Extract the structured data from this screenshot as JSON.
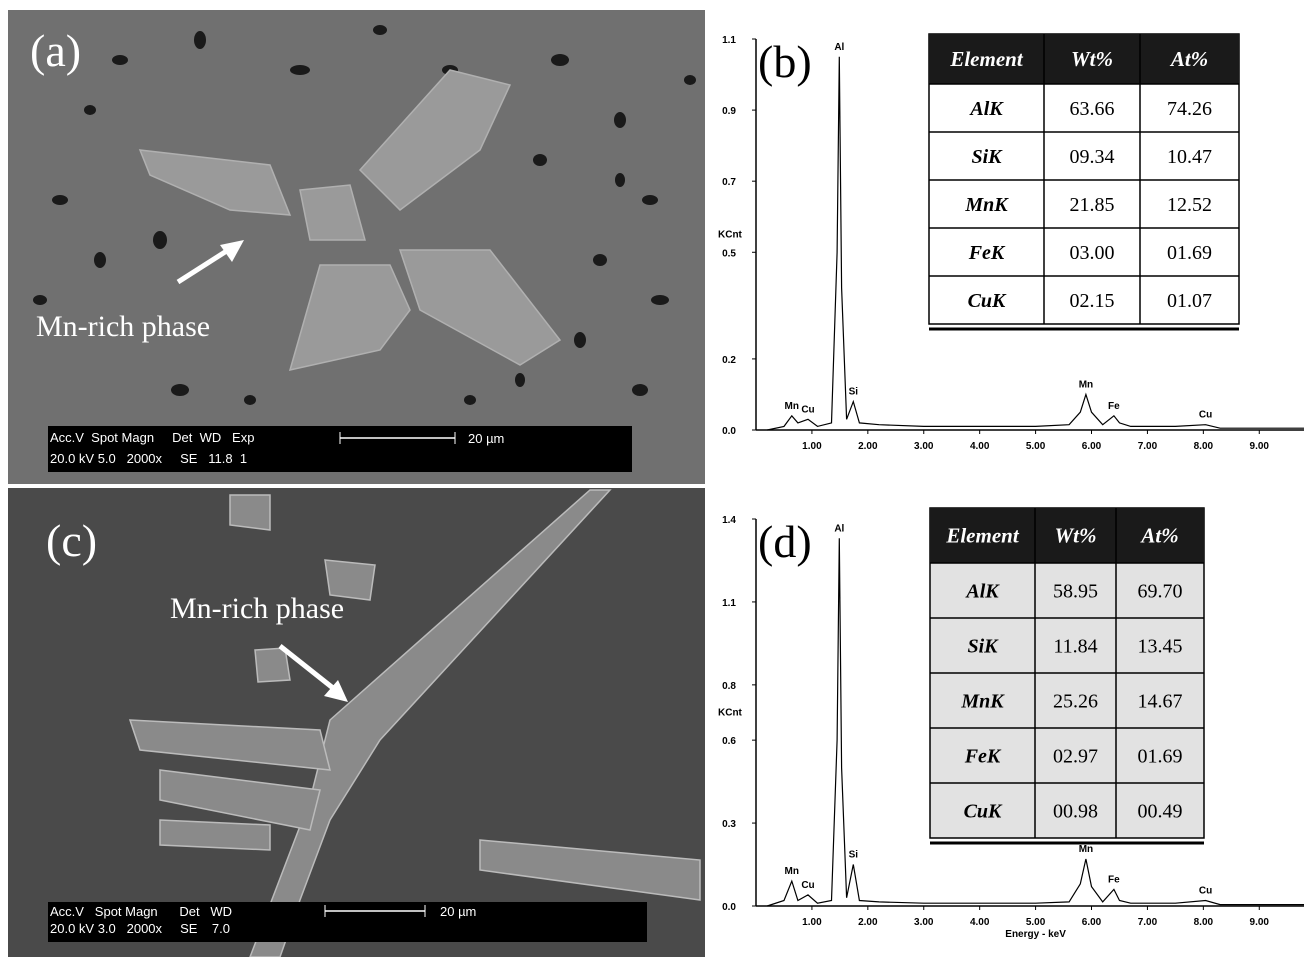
{
  "sem_images": [
    {
      "label": "(a)",
      "annotation": "Mn-rich phase",
      "info_bar": {
        "line1": "Acc.V  Spot Magn     Det  WD   Exp",
        "line2": "20.0 kV 5.0   2000x     SE   11.8  1",
        "scale": "20 µm"
      }
    },
    {
      "label": "(c)",
      "annotation": "Mn-rich phase",
      "info_bar": {
        "line1": "Acc.V   Spot Magn      Det   WD",
        "line2": "20.0 kV 3.0   2000x     SE    7.0",
        "scale": "20 µm"
      }
    }
  ],
  "chart_data": [
    {
      "type": "line",
      "label": "(b)",
      "y_label": "KCnt",
      "color": "#000000",
      "x": [
        0.2,
        0.5,
        0.64,
        0.75,
        0.93,
        1.1,
        1.35,
        1.45,
        1.49,
        1.53,
        1.62,
        1.74,
        1.85,
        2.2,
        3,
        4,
        5,
        5.6,
        5.8,
        5.9,
        6.0,
        6.2,
        6.4,
        6.5,
        6.7,
        7.5,
        8.04,
        8.3,
        9,
        9.8
      ],
      "values": [
        0.0,
        0.01,
        0.04,
        0.02,
        0.03,
        0.01,
        0.02,
        0.5,
        1.05,
        0.4,
        0.03,
        0.08,
        0.02,
        0.015,
        0.01,
        0.01,
        0.01,
        0.015,
        0.05,
        0.1,
        0.05,
        0.015,
        0.04,
        0.02,
        0.01,
        0.01,
        0.015,
        0.005,
        0.005,
        0.005
      ],
      "peaks": [
        {
          "text": "Mn",
          "x": 0.64
        },
        {
          "text": "Cu",
          "x": 0.93
        },
        {
          "text": "Al",
          "x": 1.49
        },
        {
          "text": "Si",
          "x": 1.74
        },
        {
          "text": "Mn",
          "x": 5.9
        },
        {
          "text": "Fe",
          "x": 6.4
        },
        {
          "text": "Cu",
          "x": 8.04
        }
      ],
      "xlim": [
        0,
        9.8
      ],
      "xticks": [
        {
          "value": 1,
          "label": "1.00"
        },
        {
          "value": 2,
          "label": "2.00"
        },
        {
          "value": 3,
          "label": "3.00"
        },
        {
          "value": 4,
          "label": "4.00"
        },
        {
          "value": 5,
          "label": "5.00"
        },
        {
          "value": 6,
          "label": "6.00"
        },
        {
          "value": 7,
          "label": "7.00"
        },
        {
          "value": 8,
          "label": "8.00"
        },
        {
          "value": 9,
          "label": "9.00"
        }
      ],
      "ylim": [
        0,
        1.1
      ],
      "yticks": [
        {
          "value": 0,
          "label": "0.0"
        },
        0.2,
        0.5,
        0.7,
        0.9,
        1.1
      ],
      "table": {
        "columns": [
          "Element",
          "Wt%",
          "At%"
        ],
        "rows": [
          [
            "AlK",
            "63.66",
            "74.26"
          ],
          [
            "SiK",
            "09.34",
            "10.47"
          ],
          [
            "MnK",
            "21.85",
            "12.52"
          ],
          [
            "FeK",
            "03.00",
            "01.69"
          ],
          [
            "CuK",
            "02.15",
            "01.07"
          ]
        ]
      }
    },
    {
      "type": "line",
      "label": "(d)",
      "y_label": "KCnt",
      "x_label": "Energy - keV",
      "color": "#000000",
      "x": [
        0.2,
        0.5,
        0.64,
        0.75,
        0.93,
        1.1,
        1.35,
        1.45,
        1.49,
        1.53,
        1.62,
        1.74,
        1.85,
        2.2,
        3,
        4,
        5,
        5.6,
        5.8,
        5.9,
        6.0,
        6.2,
        6.4,
        6.5,
        6.7,
        7.5,
        8.04,
        8.3,
        9,
        9.8
      ],
      "values": [
        0.0,
        0.02,
        0.09,
        0.02,
        0.04,
        0.01,
        0.02,
        0.6,
        1.33,
        0.5,
        0.03,
        0.15,
        0.02,
        0.015,
        0.01,
        0.01,
        0.01,
        0.015,
        0.08,
        0.17,
        0.07,
        0.015,
        0.06,
        0.02,
        0.01,
        0.01,
        0.02,
        0.005,
        0.005,
        0.005
      ],
      "peaks": [
        {
          "text": "Mn",
          "x": 0.64
        },
        {
          "text": "Cu",
          "x": 0.93
        },
        {
          "text": "Al",
          "x": 1.49
        },
        {
          "text": "Si",
          "x": 1.74
        },
        {
          "text": "Mn",
          "x": 5.9
        },
        {
          "text": "Fe",
          "x": 6.4
        },
        {
          "text": "Cu",
          "x": 8.04
        }
      ],
      "xlim": [
        0,
        9.8
      ],
      "xticks": [
        {
          "value": 1,
          "label": "1.00"
        },
        {
          "value": 2,
          "label": "2.00"
        },
        {
          "value": 3,
          "label": "3.00"
        },
        {
          "value": 4,
          "label": "4.00"
        },
        {
          "value": 5,
          "label": "5.00"
        },
        {
          "value": 6,
          "label": "6.00"
        },
        {
          "value": 7,
          "label": "7.00"
        },
        {
          "value": 8,
          "label": "8.00"
        },
        {
          "value": 9,
          "label": "9.00"
        }
      ],
      "ylim": [
        0,
        1.4
      ],
      "yticks": [
        {
          "value": 0,
          "label": "0.0"
        },
        0.3,
        0.6,
        0.8,
        1.1,
        1.4
      ],
      "table": {
        "columns": [
          "Element",
          "Wt%",
          "At%"
        ],
        "rows": [
          [
            "AlK",
            "58.95",
            "69.70"
          ],
          [
            "SiK",
            "11.84",
            "13.45"
          ],
          [
            "MnK",
            "25.26",
            "14.67"
          ],
          [
            "FeK",
            "02.97",
            "01.69"
          ],
          [
            "CuK",
            "00.98",
            "00.49"
          ]
        ]
      }
    }
  ]
}
